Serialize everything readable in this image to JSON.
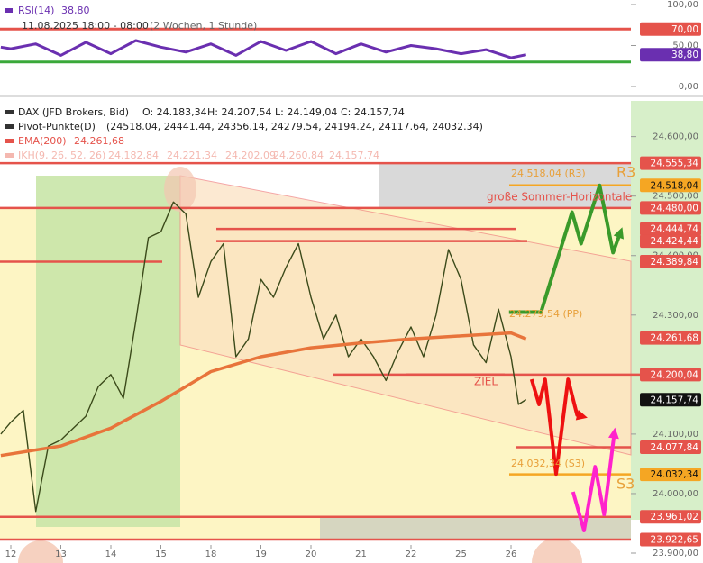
{
  "chart_data": [
    {
      "type": "line",
      "legend": [
        "RSI(14)",
        "38,80"
      ],
      "subtitle": "11.08.2025 18:00 - 08:00",
      "subtitle_note": "(2 Wochen, 1 Stunde)",
      "xlim": [
        -0.216,
        12.396
      ],
      "ylim": [
        -4.4,
        105.5
      ],
      "yticks": [
        {
          "value": 0,
          "label": "0,00"
        },
        {
          "value": 50,
          "label": "50,00"
        },
        {
          "value": 100,
          "label": "100,00"
        }
      ],
      "levels": [
        {
          "value": 70,
          "label": "70,00",
          "color": "#e5534b"
        },
        {
          "value": 30,
          "color": "#3aa83a"
        },
        {
          "value": 38.8,
          "label": "38,80",
          "color": "#6a2fb0"
        }
      ],
      "series": [
        {
          "name": "RSI(14)",
          "color": "#6a2fb0",
          "x": [
            -0.2,
            0,
            0.5,
            1,
            1.5,
            2,
            2.5,
            3,
            3.5,
            4,
            4.5,
            5,
            5.5,
            6,
            6.5,
            7,
            7.5,
            8,
            8.5,
            9,
            9.5,
            10,
            10.3
          ],
          "values": [
            48,
            46,
            52,
            38,
            54,
            40,
            56,
            48,
            42,
            52,
            38,
            55,
            44,
            55,
            40,
            52,
            42,
            50,
            46,
            40,
            45,
            35,
            38.8
          ]
        }
      ]
    },
    {
      "type": "line",
      "legend": [
        [
          "DAX (JFD Brokers, Bid)",
          "O: 24.183,34",
          "H: 24.207,54",
          "L: 24.149,04",
          "C: 24.157,74"
        ],
        [
          "Pivot-Punkte(D)",
          "(24518.04, 24441.44, 24356.14, 24279.54, 24194.24, 24117.64, 24032.34)"
        ],
        [
          "EMA(200)",
          "24.261,68"
        ],
        [
          "IKH(9, 26, 52, 26)",
          "24.182,84",
          "24.221,34",
          "24.202,09",
          "24.260,84",
          "24.157,74"
        ]
      ],
      "legend_colors": [
        "#333333",
        "#333333",
        "#e5534b",
        "#f4b8b0"
      ],
      "xlim": [
        -0.216,
        12.396
      ],
      "xticks": [
        {
          "value": 0,
          "label": "12"
        },
        {
          "value": 1,
          "label": "13"
        },
        {
          "value": 2,
          "label": "14"
        },
        {
          "value": 3,
          "label": "15"
        },
        {
          "value": 4,
          "label": "18"
        },
        {
          "value": 5,
          "label": "19"
        },
        {
          "value": 6,
          "label": "20"
        },
        {
          "value": 7,
          "label": "21"
        },
        {
          "value": 8,
          "label": "22"
        },
        {
          "value": 9,
          "label": "25"
        },
        {
          "value": 10,
          "label": "26"
        }
      ],
      "ylim": [
        23900,
        24660
      ],
      "yticks": [
        {
          "value": 23900,
          "label": "23.900,00"
        },
        {
          "value": 24000,
          "label": "24.000,00"
        },
        {
          "value": 24100,
          "label": "24.100,00"
        },
        {
          "value": 24200,
          "label": "24.200,00"
        },
        {
          "value": 24300,
          "label": "24.300,00"
        },
        {
          "value": 24400,
          "label": "24.400,00"
        },
        {
          "value": 24500,
          "label": "24.500,00"
        },
        {
          "value": 24600,
          "label": "24.600,00"
        }
      ],
      "levels": [
        {
          "value": 24555.34,
          "label": "24.555,34",
          "color": "#e5534b"
        },
        {
          "value": 24518.04,
          "label": "24.518,04",
          "color": "#f5a623"
        },
        {
          "value": 24480.0,
          "label": "24.480,00",
          "color": "#e5534b"
        },
        {
          "value": 24444.74,
          "label": "24.444,74",
          "color": "#e5534b"
        },
        {
          "value": 24424.44,
          "label": "24.424,44",
          "color": "#e5534b"
        },
        {
          "value": 24389.84,
          "label": "24.389,84",
          "color": "#e5534b"
        },
        {
          "value": 24261.68,
          "label": "24.261,68",
          "color": "#e5534b"
        },
        {
          "value": 24200.04,
          "label": "24.200,04",
          "color": "#e5534b"
        },
        {
          "value": 24157.74,
          "label": "24.157,74",
          "color": "#111111"
        },
        {
          "value": 24077.84,
          "label": "24.077,84",
          "color": "#e5534b"
        },
        {
          "value": 24032.34,
          "label": "24.032,34",
          "color": "#f5a623"
        },
        {
          "value": 23961.02,
          "label": "23.961,02",
          "color": "#e5534b"
        },
        {
          "value": 23922.65,
          "label": "23.922,65",
          "color": "#e5534b"
        }
      ],
      "annotations": [
        "R3",
        "S3",
        "große Sommer-Horizontale",
        "ZIEL",
        "24.518,04 (R3)",
        "24.279,54 (PP)",
        "24.032,34 (S3)"
      ],
      "series": [
        {
          "name": "DAX (JFD Brokers, Bid)",
          "color": "#3b4a1a",
          "x": [
            -0.2,
            0,
            0.25,
            0.5,
            0.75,
            1,
            1.25,
            1.5,
            1.75,
            2,
            2.25,
            2.5,
            2.75,
            3,
            3.25,
            3.5,
            3.75,
            4,
            4.25,
            4.5,
            4.75,
            5,
            5.25,
            5.5,
            5.75,
            6,
            6.25,
            6.5,
            6.75,
            7,
            7.25,
            7.5,
            7.75,
            8,
            8.25,
            8.5,
            8.75,
            9,
            9.25,
            9.5,
            9.75,
            10,
            10.15,
            10.3
          ],
          "values": [
            24100,
            24120,
            24140,
            23970,
            24080,
            24090,
            24110,
            24130,
            24180,
            24200,
            24160,
            24290,
            24430,
            24440,
            24490,
            24470,
            24330,
            24390,
            24420,
            24230,
            24260,
            24360,
            24330,
            24380,
            24420,
            24330,
            24260,
            24300,
            24230,
            24260,
            24230,
            24190,
            24240,
            24280,
            24230,
            24300,
            24410,
            24360,
            24250,
            24220,
            24310,
            24230,
            24150,
            24158
          ]
        },
        {
          "name": "EMA(200)",
          "color": "#e8743b",
          "x": [
            -0.2,
            1,
            2,
            3,
            3.5,
            4,
            5,
            6,
            7,
            8,
            9,
            10,
            10.3
          ],
          "values": [
            24064,
            24080,
            24110,
            24155,
            24180,
            24205,
            24230,
            24245,
            24253,
            24260,
            24265,
            24270,
            24260
          ]
        }
      ],
      "projections": [
        {
          "color": "#3a9a2a",
          "x": [
            9.96,
            10.6,
            11.22,
            11.4,
            11.77,
            12.04,
            12.2
          ],
          "values": [
            24305,
            24305,
            24473,
            24420,
            24518,
            24405,
            24442
          ]
        },
        {
          "color": "#ee1111",
          "x": [
            10.41,
            10.56,
            10.68,
            10.9,
            11.14,
            11.32,
            11.46
          ],
          "values": [
            24192,
            24150,
            24192,
            24033,
            24192,
            24132,
            24129
          ]
        },
        {
          "color": "#ff22cc",
          "x": [
            11.24,
            11.46,
            11.68,
            11.86,
            12.07
          ],
          "values": [
            24003,
            23938,
            24045,
            23965,
            24105
          ]
        }
      ]
    }
  ]
}
